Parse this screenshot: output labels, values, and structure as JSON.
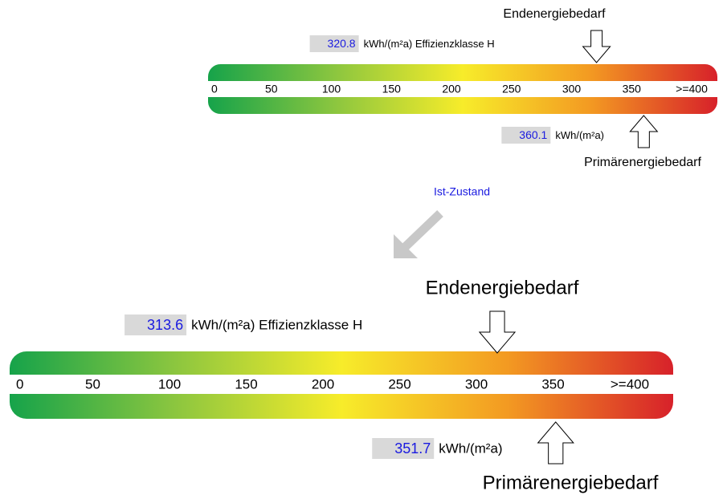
{
  "scales": [
    {
      "label_top": "Endenergiebedarf",
      "end_value": 320.8,
      "end_text": "kWh/(m²a) Effizienzklasse H",
      "xlim": [
        0,
        400
      ],
      "ticks": [
        0,
        50,
        100,
        150,
        200,
        250,
        300,
        350,
        {
          "value": 400,
          "label": ">=400"
        }
      ],
      "primary_value": 360.1,
      "primary_text": "kWh/(m²a)",
      "label_bottom": "Primärenergiebedarf"
    },
    {
      "label_top": "Endenergiebedarf",
      "end_value": 313.6,
      "end_text": "kWh/(m²a) Effizienzklasse H",
      "xlim": [
        0,
        400
      ],
      "ticks": [
        0,
        50,
        100,
        150,
        200,
        250,
        300,
        350,
        {
          "value": 400,
          "label": ">=400"
        }
      ],
      "primary_value": 351.7,
      "primary_text": "kWh/(m²a)",
      "label_bottom": "Primärenergiebedarf"
    }
  ],
  "transition_label": "Ist-Zustand"
}
